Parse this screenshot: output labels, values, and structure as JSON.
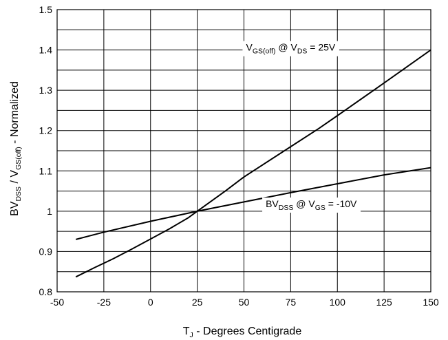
{
  "chart_data": {
    "type": "line",
    "title": "",
    "xlabel": {
      "main": "T",
      "sub": "J",
      "rest": " - Degrees Centigrade"
    },
    "ylabel": {
      "p1": "BV",
      "s1": "DSS",
      "p2": " / V",
      "s2": "GS(off)",
      "p3": " - Normalized"
    },
    "xlim": [
      -50,
      150
    ],
    "ylim": [
      0.8,
      1.5
    ],
    "x_ticks": [
      "-50",
      "-25",
      "0",
      "25",
      "50",
      "75",
      "100",
      "125",
      "150"
    ],
    "y_ticks": [
      "0.8",
      "0.9",
      "1",
      "1.1",
      "1.2",
      "1.3",
      "1.4",
      "1.5"
    ],
    "grid": true,
    "series": [
      {
        "name": "VGS(off) @ VDS = 25V",
        "label_parts": {
          "p1": "V",
          "s1": "GS(off)",
          "p2": " @ V",
          "s2": "DS",
          "p3": " = 25V"
        },
        "x": [
          -40,
          -30,
          -20,
          -10,
          0,
          10,
          20,
          25,
          40,
          50,
          75,
          90,
          100,
          125,
          150
        ],
        "y": [
          0.837,
          0.86,
          0.882,
          0.906,
          0.931,
          0.956,
          0.983,
          1.0,
          1.05,
          1.085,
          1.16,
          1.205,
          1.237,
          1.318,
          1.4
        ]
      },
      {
        "name": "BVDSS @ VGS = -10V",
        "label_parts": {
          "p1": "BV",
          "s1": "DSS",
          "p2": " @ V",
          "s2": "GS",
          "p3": " = -10V"
        },
        "x": [
          -40,
          -25,
          0,
          25,
          50,
          75,
          100,
          125,
          150
        ],
        "y": [
          0.93,
          0.948,
          0.975,
          1.0,
          1.023,
          1.046,
          1.068,
          1.09,
          1.108
        ]
      }
    ]
  }
}
